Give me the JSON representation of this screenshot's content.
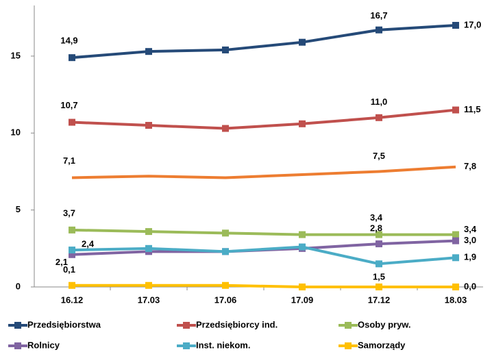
{
  "chart_data": {
    "type": "line",
    "categories": [
      "16.12",
      "17.03",
      "17.06",
      "17.09",
      "17.12",
      "18.03"
    ],
    "ylim": [
      0,
      18
    ],
    "yticks": [
      0,
      5,
      10,
      15
    ],
    "series": [
      {
        "name": "Przedsiębiorstwa",
        "color": "#254a78",
        "marker": true,
        "values": [
          14.9,
          15.3,
          15.4,
          15.9,
          16.7,
          17.0
        ],
        "value_labels": [
          "14,9",
          null,
          null,
          null,
          "16,7",
          "17,0"
        ]
      },
      {
        "name": "Przedsiębiorcy ind.",
        "color": "#c0504d",
        "marker": true,
        "values": [
          10.7,
          10.5,
          10.3,
          10.6,
          11.0,
          11.5
        ],
        "value_labels": [
          "10,7",
          null,
          null,
          null,
          "11,0",
          "11,5"
        ]
      },
      {
        "color": "#ed7d31",
        "marker": false,
        "values": [
          7.1,
          7.2,
          7.1,
          7.3,
          7.5,
          7.8
        ],
        "value_labels": [
          "7,1",
          null,
          null,
          null,
          "7,5",
          "7,8"
        ]
      },
      {
        "name": "Osoby pryw.",
        "color": "#9bbb59",
        "marker": true,
        "values": [
          3.7,
          3.6,
          3.5,
          3.4,
          3.4,
          3.4
        ],
        "value_labels": [
          "3,7",
          null,
          null,
          null,
          "3,4",
          "3,4"
        ]
      },
      {
        "name": "Rolnicy",
        "color": "#8064a2",
        "marker": true,
        "values": [
          2.1,
          2.3,
          2.3,
          2.5,
          2.8,
          3.0
        ],
        "value_labels": [
          "2,1",
          null,
          null,
          null,
          "2,8",
          "3,0"
        ]
      },
      {
        "name": "Inst. niekom.",
        "color": "#4bacc6",
        "marker": true,
        "values": [
          2.4,
          2.5,
          2.3,
          2.6,
          1.5,
          1.9
        ],
        "value_labels": [
          "2,4",
          null,
          null,
          null,
          "1,5",
          "1,9"
        ]
      },
      {
        "name": "Samorządy",
        "color": "#ffc000",
        "marker": true,
        "values": [
          0.1,
          0.1,
          0.1,
          0.0,
          0.0,
          0.0
        ],
        "value_labels": [
          "0,1",
          null,
          null,
          null,
          null,
          "0,0"
        ]
      }
    ]
  }
}
